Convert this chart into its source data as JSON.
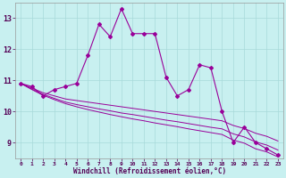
{
  "xlabel": "Windchill (Refroidissement éolien,°C)",
  "x": [
    0,
    1,
    2,
    3,
    4,
    5,
    6,
    7,
    8,
    9,
    10,
    11,
    12,
    13,
    14,
    15,
    16,
    17,
    18,
    19,
    20,
    21,
    22,
    23
  ],
  "y_main": [
    10.9,
    10.8,
    10.5,
    10.7,
    10.8,
    10.9,
    11.8,
    12.8,
    12.4,
    13.3,
    12.5,
    12.5,
    12.5,
    11.1,
    10.5,
    10.7,
    11.5,
    11.4,
    10.0,
    9.0,
    9.5,
    9.0,
    8.8,
    8.6
  ],
  "y_line1": [
    10.9,
    10.75,
    10.6,
    10.5,
    10.4,
    10.35,
    10.3,
    10.25,
    10.2,
    10.15,
    10.1,
    10.05,
    10.0,
    9.95,
    9.9,
    9.85,
    9.8,
    9.75,
    9.7,
    9.55,
    9.45,
    9.3,
    9.2,
    9.05
  ],
  "y_line2": [
    10.9,
    10.72,
    10.55,
    10.42,
    10.3,
    10.22,
    10.15,
    10.08,
    10.02,
    9.95,
    9.9,
    9.84,
    9.78,
    9.72,
    9.67,
    9.61,
    9.55,
    9.49,
    9.44,
    9.28,
    9.18,
    9.02,
    8.92,
    8.76
  ],
  "y_line3": [
    10.9,
    10.7,
    10.52,
    10.38,
    10.25,
    10.15,
    10.06,
    9.98,
    9.9,
    9.83,
    9.76,
    9.7,
    9.63,
    9.57,
    9.51,
    9.44,
    9.38,
    9.32,
    9.26,
    9.08,
    8.98,
    8.8,
    8.7,
    8.54
  ],
  "line_color": "#990099",
  "bg_color": "#c8f0f0",
  "grid_color": "#a8dada",
  "ylim": [
    8.5,
    13.5
  ],
  "yticks": [
    9,
    10,
    11,
    12,
    13
  ],
  "xlim": [
    -0.5,
    23.5
  ]
}
